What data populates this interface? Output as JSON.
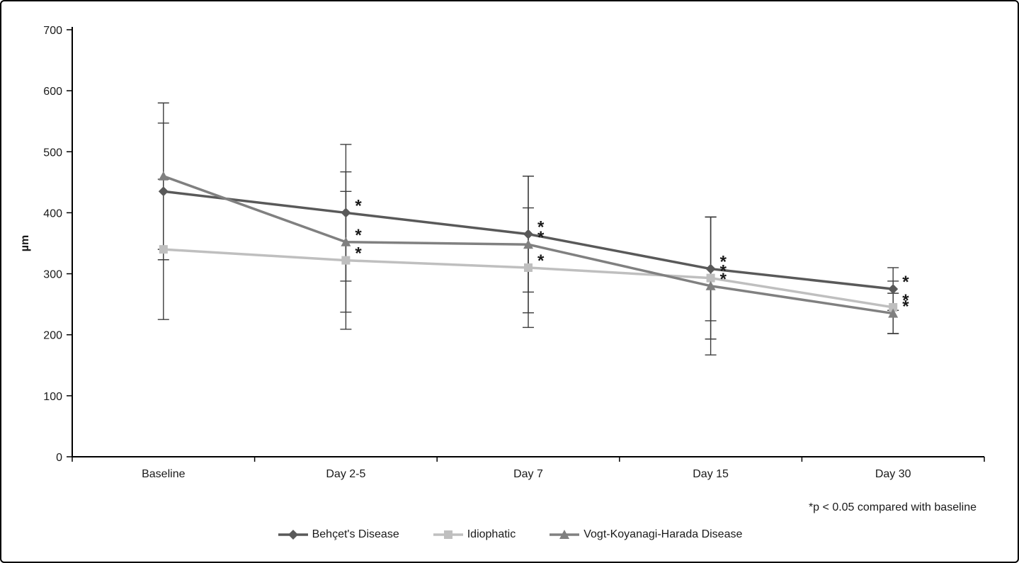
{
  "chart_data": {
    "type": "line",
    "title": "",
    "xlabel": "",
    "ylabel": "µm",
    "ylim": [
      0,
      700
    ],
    "ytick_step": 100,
    "grid": false,
    "legend_position": "bottom",
    "annotation": "*p < 0.05 compared with baseline",
    "categories": [
      "Baseline",
      "Day 2-5",
      "Day 7",
      "Day 15",
      "Day 30"
    ],
    "series": [
      {
        "name": "Behçet's Disease",
        "marker": "diamond",
        "color": "#595959",
        "values": [
          435,
          400,
          365,
          308,
          275
        ],
        "errors": [
          112,
          112,
          95,
          85,
          35
        ],
        "significant": [
          false,
          true,
          true,
          true,
          true
        ]
      },
      {
        "name": "Idiophatic",
        "marker": "square",
        "color": "#bfbfbf",
        "values": [
          340,
          322,
          310,
          293,
          245
        ],
        "errors": [
          115,
          113,
          98,
          100,
          43
        ],
        "significant": [
          false,
          true,
          true,
          true,
          true
        ]
      },
      {
        "name": "Vogt-Koyanagi-Harada Disease",
        "marker": "triangle",
        "color": "#808080",
        "values": [
          460,
          352,
          348,
          280,
          235
        ],
        "errors": [
          120,
          115,
          112,
          113,
          33
        ],
        "significant": [
          false,
          true,
          true,
          true,
          true
        ]
      }
    ],
    "error_bar_color": "#3d3d3d",
    "axis_color": "#000000",
    "asterisk_color": "#1a1a1a"
  }
}
